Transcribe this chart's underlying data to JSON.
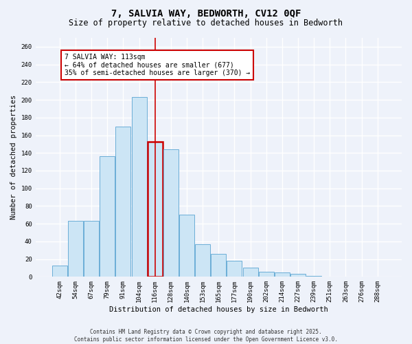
{
  "title": "7, SALVIA WAY, BEDWORTH, CV12 0QF",
  "subtitle": "Size of property relative to detached houses in Bedworth",
  "xlabel": "Distribution of detached houses by size in Bedworth",
  "ylabel": "Number of detached properties",
  "bar_labels": [
    "42sqm",
    "54sqm",
    "67sqm",
    "79sqm",
    "91sqm",
    "104sqm",
    "116sqm",
    "128sqm",
    "140sqm",
    "153sqm",
    "165sqm",
    "177sqm",
    "190sqm",
    "202sqm",
    "214sqm",
    "227sqm",
    "239sqm",
    "251sqm",
    "263sqm",
    "276sqm",
    "288sqm"
  ],
  "bar_values": [
    13,
    63,
    63,
    136,
    170,
    203,
    153,
    144,
    70,
    37,
    26,
    18,
    10,
    6,
    5,
    3,
    1,
    0,
    0,
    0,
    0
  ],
  "bar_color": "#cce5f5",
  "bar_edge_color": "#6baed6",
  "highlight_bar_index": 6,
  "highlight_color": "#cc0000",
  "annotation_title": "7 SALVIA WAY: 113sqm",
  "annotation_line1": "← 64% of detached houses are smaller (677)",
  "annotation_line2": "35% of semi-detached houses are larger (370) →",
  "annotation_box_color": "#ffffff",
  "annotation_box_edge": "#cc0000",
  "ylim": [
    0,
    270
  ],
  "yticks": [
    0,
    20,
    40,
    60,
    80,
    100,
    120,
    140,
    160,
    180,
    200,
    220,
    240,
    260
  ],
  "footer_line1": "Contains HM Land Registry data © Crown copyright and database right 2025.",
  "footer_line2": "Contains public sector information licensed under the Open Government Licence v3.0.",
  "bg_color": "#eef2fa",
  "plot_bg_color": "#eef2fa",
  "grid_color": "#ffffff",
  "title_fontsize": 10,
  "subtitle_fontsize": 8.5,
  "label_fontsize": 7.5,
  "tick_fontsize": 6.5,
  "footer_fontsize": 5.5
}
